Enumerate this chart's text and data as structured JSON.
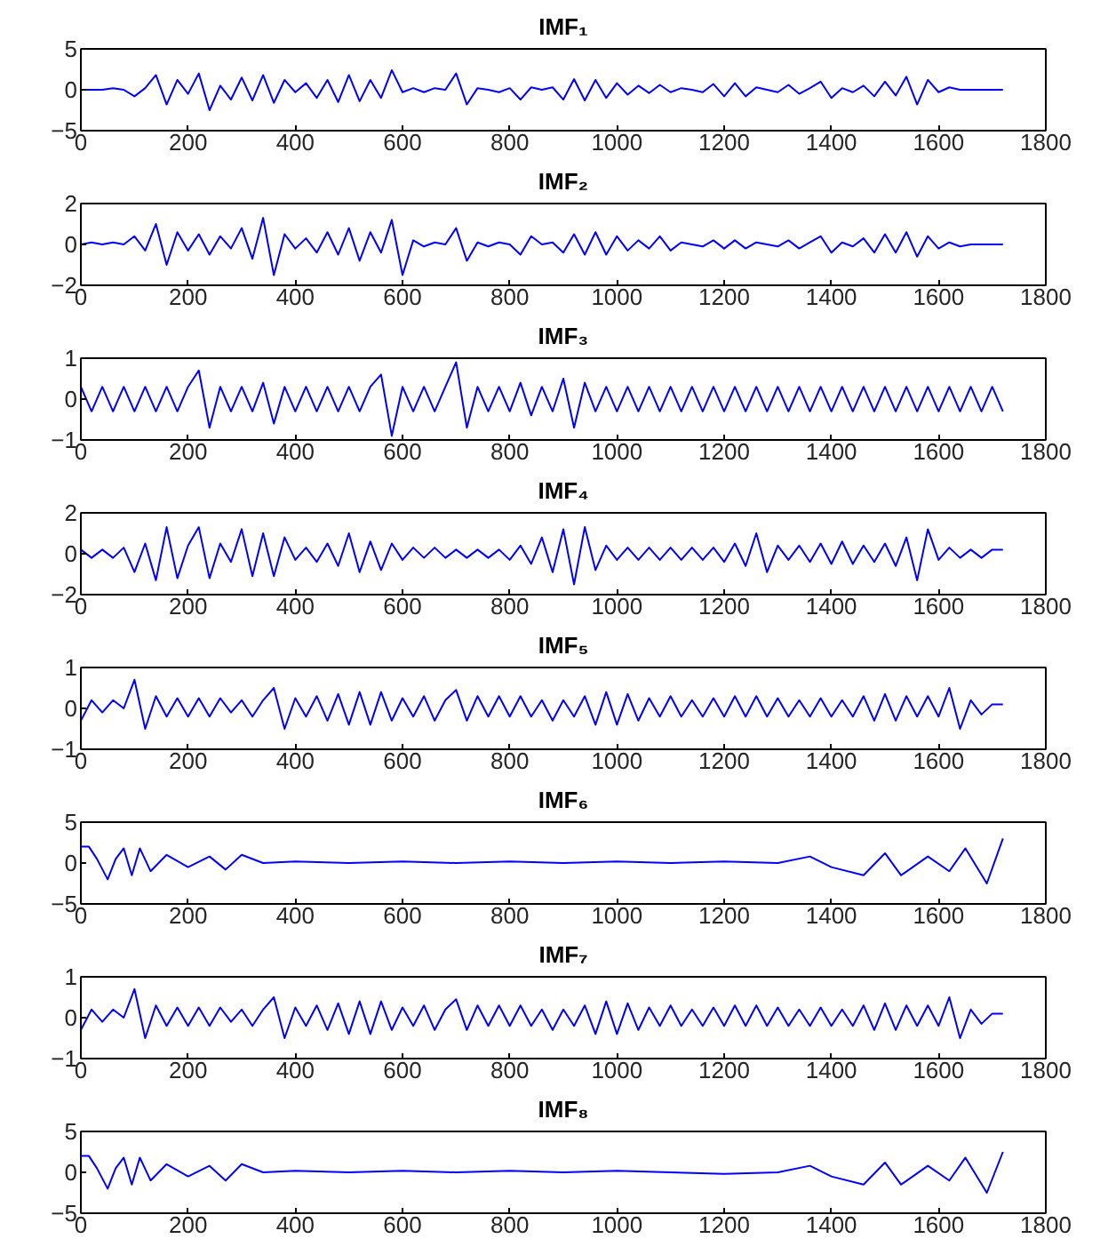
{
  "chart_data": [
    {
      "type": "line",
      "title": "IMF₁",
      "color": "#0000ff",
      "xlim": [
        0,
        1800
      ],
      "xticks": [
        0,
        200,
        400,
        600,
        800,
        1000,
        1200,
        1400,
        1600,
        1800
      ],
      "ylim": [
        -5,
        5
      ],
      "yticks": [
        -5,
        0,
        5
      ],
      "x": [
        0,
        20,
        40,
        60,
        80,
        100,
        120,
        140,
        160,
        180,
        200,
        220,
        240,
        260,
        280,
        300,
        320,
        340,
        360,
        380,
        400,
        420,
        440,
        460,
        480,
        500,
        520,
        540,
        560,
        580,
        600,
        620,
        640,
        660,
        680,
        700,
        720,
        740,
        760,
        780,
        800,
        820,
        840,
        860,
        880,
        900,
        920,
        940,
        960,
        980,
        1000,
        1020,
        1040,
        1060,
        1080,
        1100,
        1120,
        1140,
        1160,
        1180,
        1200,
        1220,
        1240,
        1260,
        1280,
        1300,
        1320,
        1340,
        1360,
        1380,
        1400,
        1420,
        1440,
        1460,
        1480,
        1500,
        1520,
        1540,
        1560,
        1580,
        1600,
        1620,
        1640,
        1660,
        1680,
        1700,
        1720
      ],
      "values": [
        0,
        0,
        0,
        0.2,
        0,
        -0.8,
        0.2,
        1.8,
        -1.8,
        1.2,
        -0.5,
        2,
        -2.5,
        0.5,
        -1.2,
        1.5,
        -1.3,
        1.8,
        -1.6,
        1.2,
        -0.3,
        0.8,
        -1,
        1.2,
        -1.5,
        1.8,
        -1.4,
        1.2,
        -1,
        2.4,
        -0.3,
        0.2,
        -0.3,
        0.2,
        0,
        2,
        -1.8,
        0.2,
        0,
        -0.3,
        0.2,
        -1.2,
        0.3,
        0,
        0.3,
        -1.2,
        1.3,
        -1.3,
        1.2,
        -1,
        0.8,
        -0.6,
        0.5,
        -0.4,
        0.6,
        -0.3,
        0.2,
        0,
        -0.3,
        0.7,
        -0.8,
        0.8,
        -0.8,
        0.3,
        0,
        -0.3,
        0.6,
        -0.5,
        0.2,
        1,
        -1,
        0.2,
        -0.3,
        0.5,
        -0.8,
        1,
        -0.7,
        1.6,
        -1.8,
        1.2,
        -0.3,
        0.3,
        0,
        0,
        0,
        0,
        0
      ]
    },
    {
      "type": "line",
      "title": "IMF₂",
      "color": "#0000ff",
      "xlim": [
        0,
        1800
      ],
      "xticks": [
        0,
        200,
        400,
        600,
        800,
        1000,
        1200,
        1400,
        1600,
        1800
      ],
      "ylim": [
        -2,
        2
      ],
      "yticks": [
        -2,
        0,
        2
      ],
      "x": [
        0,
        20,
        40,
        60,
        80,
        100,
        120,
        140,
        160,
        180,
        200,
        220,
        240,
        260,
        280,
        300,
        320,
        340,
        360,
        380,
        400,
        420,
        440,
        460,
        480,
        500,
        520,
        540,
        560,
        580,
        600,
        620,
        640,
        660,
        680,
        700,
        720,
        740,
        760,
        780,
        800,
        820,
        840,
        860,
        880,
        900,
        920,
        940,
        960,
        980,
        1000,
        1020,
        1040,
        1060,
        1080,
        1100,
        1120,
        1140,
        1160,
        1180,
        1200,
        1220,
        1240,
        1260,
        1280,
        1300,
        1320,
        1340,
        1360,
        1380,
        1400,
        1420,
        1440,
        1460,
        1480,
        1500,
        1520,
        1540,
        1560,
        1580,
        1600,
        1620,
        1640,
        1660,
        1680,
        1700,
        1720
      ],
      "values": [
        0,
        0.1,
        0,
        0.1,
        0,
        0.4,
        -0.3,
        1,
        -1,
        0.6,
        -0.3,
        0.5,
        -0.5,
        0.4,
        -0.2,
        0.8,
        -0.7,
        1.3,
        -1.5,
        0.5,
        -0.2,
        0.3,
        -0.4,
        0.6,
        -0.5,
        0.8,
        -0.8,
        0.6,
        -0.4,
        1.2,
        -1.5,
        0.2,
        -0.1,
        0.1,
        0,
        0.8,
        -0.8,
        0.1,
        -0.1,
        0.1,
        0,
        -0.5,
        0.4,
        0,
        0.1,
        -0.4,
        0.5,
        -0.5,
        0.6,
        -0.5,
        0.4,
        -0.3,
        0.2,
        -0.2,
        0.4,
        -0.3,
        0.1,
        0,
        -0.1,
        0.2,
        -0.2,
        0.2,
        -0.2,
        0.1,
        0,
        -0.1,
        0.2,
        -0.2,
        0.1,
        0.4,
        -0.4,
        0.1,
        -0.1,
        0.3,
        -0.4,
        0.5,
        -0.4,
        0.6,
        -0.6,
        0.4,
        -0.2,
        0.1,
        -0.1,
        0,
        0,
        0,
        0
      ]
    },
    {
      "type": "line",
      "title": "IMF₃",
      "color": "#0000ff",
      "xlim": [
        0,
        1800
      ],
      "xticks": [
        0,
        200,
        400,
        600,
        800,
        1000,
        1200,
        1400,
        1600,
        1800
      ],
      "ylim": [
        -1,
        1
      ],
      "yticks": [
        -1,
        0,
        1
      ],
      "x": [
        0,
        20,
        40,
        60,
        80,
        100,
        120,
        140,
        160,
        180,
        200,
        220,
        240,
        260,
        280,
        300,
        320,
        340,
        360,
        380,
        400,
        420,
        440,
        460,
        480,
        500,
        520,
        540,
        560,
        580,
        600,
        620,
        640,
        660,
        680,
        700,
        720,
        740,
        760,
        780,
        800,
        820,
        840,
        860,
        880,
        900,
        920,
        940,
        960,
        980,
        1000,
        1020,
        1040,
        1060,
        1080,
        1100,
        1120,
        1140,
        1160,
        1180,
        1200,
        1220,
        1240,
        1260,
        1280,
        1300,
        1320,
        1340,
        1360,
        1380,
        1400,
        1420,
        1440,
        1460,
        1480,
        1500,
        1520,
        1540,
        1560,
        1580,
        1600,
        1620,
        1640,
        1660,
        1680,
        1700,
        1720
      ],
      "values": [
        0.3,
        -0.3,
        0.3,
        -0.3,
        0.3,
        -0.3,
        0.3,
        -0.3,
        0.3,
        -0.3,
        0.3,
        0.7,
        -0.7,
        0.3,
        -0.3,
        0.3,
        -0.3,
        0.4,
        -0.6,
        0.3,
        -0.3,
        0.3,
        -0.3,
        0.3,
        -0.3,
        0.3,
        -0.3,
        0.3,
        0.6,
        -0.9,
        0.3,
        -0.3,
        0.3,
        -0.3,
        0.3,
        0.9,
        -0.7,
        0.3,
        -0.3,
        0.3,
        -0.3,
        0.4,
        -0.4,
        0.3,
        -0.3,
        0.5,
        -0.7,
        0.4,
        -0.3,
        0.3,
        -0.3,
        0.3,
        -0.3,
        0.3,
        -0.3,
        0.3,
        -0.3,
        0.3,
        -0.3,
        0.3,
        -0.3,
        0.3,
        -0.3,
        0.3,
        -0.3,
        0.3,
        -0.3,
        0.3,
        -0.3,
        0.3,
        -0.3,
        0.3,
        -0.3,
        0.3,
        -0.3,
        0.3,
        -0.3,
        0.3,
        -0.3,
        0.3,
        -0.3,
        0.3,
        -0.3,
        0.3,
        -0.3,
        0.3,
        -0.3
      ]
    },
    {
      "type": "line",
      "title": "IMF₄",
      "color": "#0000ff",
      "xlim": [
        0,
        1800
      ],
      "xticks": [
        0,
        200,
        400,
        600,
        800,
        1000,
        1200,
        1400,
        1600,
        1800
      ],
      "ylim": [
        -2,
        2
      ],
      "yticks": [
        -2,
        0,
        2
      ],
      "x": [
        0,
        20,
        40,
        60,
        80,
        100,
        120,
        140,
        160,
        180,
        200,
        220,
        240,
        260,
        280,
        300,
        320,
        340,
        360,
        380,
        400,
        420,
        440,
        460,
        480,
        500,
        520,
        540,
        560,
        580,
        600,
        620,
        640,
        660,
        680,
        700,
        720,
        740,
        760,
        780,
        800,
        820,
        840,
        860,
        880,
        900,
        920,
        940,
        960,
        980,
        1000,
        1020,
        1040,
        1060,
        1080,
        1100,
        1120,
        1140,
        1160,
        1180,
        1200,
        1220,
        1240,
        1260,
        1280,
        1300,
        1320,
        1340,
        1360,
        1380,
        1400,
        1420,
        1440,
        1460,
        1480,
        1500,
        1520,
        1540,
        1560,
        1580,
        1600,
        1620,
        1640,
        1660,
        1680,
        1700,
        1720
      ],
      "values": [
        0.2,
        -0.2,
        0.2,
        -0.2,
        0.3,
        -0.9,
        0.5,
        -1.3,
        1.3,
        -1.2,
        0.4,
        1.3,
        -1.2,
        0.5,
        -0.4,
        1.2,
        -1.1,
        1,
        -1.1,
        0.8,
        -0.3,
        0.3,
        -0.4,
        0.5,
        -0.6,
        1,
        -0.9,
        0.6,
        -0.8,
        0.5,
        -0.3,
        0.3,
        -0.2,
        0.3,
        -0.2,
        0.2,
        -0.2,
        0.2,
        -0.2,
        0.2,
        -0.3,
        0.4,
        -0.5,
        0.8,
        -0.9,
        1.2,
        -1.5,
        1.3,
        -0.8,
        0.4,
        -0.3,
        0.3,
        -0.3,
        0.3,
        -0.3,
        0.3,
        -0.3,
        0.3,
        -0.3,
        0.3,
        -0.4,
        0.5,
        -0.6,
        1,
        -0.9,
        0.4,
        -0.3,
        0.4,
        -0.4,
        0.5,
        -0.5,
        0.6,
        -0.5,
        0.4,
        -0.4,
        0.5,
        -0.6,
        0.8,
        -1.3,
        1.2,
        -0.3,
        0.3,
        -0.2,
        0.2,
        -0.2,
        0.2,
        0.2
      ]
    },
    {
      "type": "line",
      "title": "IMF₅",
      "color": "#0000ff",
      "xlim": [
        0,
        1800
      ],
      "xticks": [
        0,
        200,
        400,
        600,
        800,
        1000,
        1200,
        1400,
        1600,
        1800
      ],
      "ylim": [
        -1,
        1
      ],
      "yticks": [
        -1,
        0,
        1
      ],
      "x": [
        0,
        20,
        40,
        60,
        80,
        100,
        120,
        140,
        160,
        180,
        200,
        220,
        240,
        260,
        280,
        300,
        320,
        340,
        360,
        380,
        400,
        420,
        440,
        460,
        480,
        500,
        520,
        540,
        560,
        580,
        600,
        620,
        640,
        660,
        680,
        700,
        720,
        740,
        760,
        780,
        800,
        820,
        840,
        860,
        880,
        900,
        920,
        940,
        960,
        980,
        1000,
        1020,
        1040,
        1060,
        1080,
        1100,
        1120,
        1140,
        1160,
        1180,
        1200,
        1220,
        1240,
        1260,
        1280,
        1300,
        1320,
        1340,
        1360,
        1380,
        1400,
        1420,
        1440,
        1460,
        1480,
        1500,
        1520,
        1540,
        1560,
        1580,
        1600,
        1620,
        1640,
        1660,
        1680,
        1700,
        1720
      ],
      "values": [
        -0.3,
        0.2,
        -0.1,
        0.2,
        0,
        0.7,
        -0.5,
        0.3,
        -0.2,
        0.25,
        -0.2,
        0.25,
        -0.2,
        0.25,
        -0.1,
        0.2,
        -0.2,
        0.2,
        0.5,
        -0.5,
        0.25,
        -0.2,
        0.3,
        -0.3,
        0.35,
        -0.4,
        0.4,
        -0.4,
        0.4,
        -0.3,
        0.25,
        -0.2,
        0.3,
        -0.3,
        0.2,
        0.45,
        -0.3,
        0.3,
        -0.2,
        0.3,
        -0.2,
        0.3,
        -0.2,
        0.2,
        -0.3,
        0.2,
        -0.2,
        0.3,
        -0.4,
        0.4,
        -0.4,
        0.35,
        -0.3,
        0.25,
        -0.2,
        0.3,
        -0.2,
        0.2,
        -0.2,
        0.25,
        -0.2,
        0.3,
        -0.2,
        0.3,
        -0.2,
        0.25,
        -0.2,
        0.2,
        -0.2,
        0.25,
        -0.2,
        0.2,
        -0.2,
        0.3,
        -0.3,
        0.35,
        -0.3,
        0.3,
        -0.2,
        0.3,
        -0.2,
        0.5,
        -0.5,
        0.2,
        -0.15,
        0.1,
        0.1
      ]
    },
    {
      "type": "line",
      "title": "IMF₆",
      "color": "#0000ff",
      "xlim": [
        0,
        1800
      ],
      "xticks": [
        0,
        200,
        400,
        600,
        800,
        1000,
        1200,
        1400,
        1600,
        1800
      ],
      "ylim": [
        -5,
        5
      ],
      "yticks": [
        -5,
        0,
        5
      ],
      "x": [
        0,
        15,
        30,
        50,
        65,
        80,
        95,
        110,
        130,
        160,
        200,
        240,
        270,
        300,
        340,
        400,
        500,
        600,
        700,
        800,
        900,
        1000,
        1100,
        1200,
        1300,
        1360,
        1400,
        1460,
        1500,
        1530,
        1580,
        1620,
        1650,
        1690,
        1720
      ],
      "values": [
        2,
        2,
        0.5,
        -2,
        0.5,
        1.8,
        -1.5,
        1.8,
        -1,
        1,
        -0.5,
        0.8,
        -0.8,
        1,
        0,
        0.2,
        0,
        0.2,
        0,
        0.2,
        0,
        0.2,
        0,
        0.2,
        0,
        0.8,
        -0.5,
        -1.5,
        1.2,
        -1.5,
        0.8,
        -1,
        1.8,
        -2.5,
        3
      ]
    },
    {
      "type": "line",
      "title": "IMF₇",
      "color": "#0000ff",
      "xlim": [
        0,
        1800
      ],
      "xticks": [
        0,
        200,
        400,
        600,
        800,
        1000,
        1200,
        1400,
        1600,
        1800
      ],
      "ylim": [
        -1,
        1
      ],
      "yticks": [
        -1,
        0,
        1
      ],
      "x": [
        0,
        20,
        40,
        60,
        80,
        100,
        120,
        140,
        160,
        180,
        200,
        220,
        240,
        260,
        280,
        300,
        320,
        340,
        360,
        380,
        400,
        420,
        440,
        460,
        480,
        500,
        520,
        540,
        560,
        580,
        600,
        620,
        640,
        660,
        680,
        700,
        720,
        740,
        760,
        780,
        800,
        820,
        840,
        860,
        880,
        900,
        920,
        940,
        960,
        980,
        1000,
        1020,
        1040,
        1060,
        1080,
        1100,
        1120,
        1140,
        1160,
        1180,
        1200,
        1220,
        1240,
        1260,
        1280,
        1300,
        1320,
        1340,
        1360,
        1380,
        1400,
        1420,
        1440,
        1460,
        1480,
        1500,
        1520,
        1540,
        1560,
        1580,
        1600,
        1620,
        1640,
        1660,
        1680,
        1700,
        1720
      ],
      "values": [
        -0.3,
        0.2,
        -0.1,
        0.2,
        0,
        0.7,
        -0.5,
        0.3,
        -0.2,
        0.25,
        -0.2,
        0.25,
        -0.2,
        0.25,
        -0.1,
        0.2,
        -0.2,
        0.2,
        0.5,
        -0.5,
        0.25,
        -0.2,
        0.3,
        -0.3,
        0.35,
        -0.4,
        0.4,
        -0.4,
        0.4,
        -0.3,
        0.25,
        -0.2,
        0.3,
        -0.3,
        0.2,
        0.45,
        -0.3,
        0.3,
        -0.2,
        0.3,
        -0.2,
        0.3,
        -0.2,
        0.2,
        -0.3,
        0.2,
        -0.2,
        0.3,
        -0.4,
        0.4,
        -0.4,
        0.35,
        -0.3,
        0.25,
        -0.2,
        0.3,
        -0.2,
        0.2,
        -0.2,
        0.25,
        -0.2,
        0.3,
        -0.2,
        0.3,
        -0.2,
        0.25,
        -0.2,
        0.2,
        -0.2,
        0.25,
        -0.2,
        0.2,
        -0.2,
        0.3,
        -0.3,
        0.35,
        -0.3,
        0.3,
        -0.2,
        0.3,
        -0.2,
        0.5,
        -0.5,
        0.2,
        -0.15,
        0.1,
        0.1
      ]
    },
    {
      "type": "line",
      "title": "IMF₈",
      "color": "#0000ff",
      "xlim": [
        0,
        1800
      ],
      "xticks": [
        0,
        200,
        400,
        600,
        800,
        1000,
        1200,
        1400,
        1600,
        1800
      ],
      "ylim": [
        -5,
        5
      ],
      "yticks": [
        -5,
        0,
        5
      ],
      "x": [
        0,
        15,
        30,
        50,
        65,
        80,
        95,
        110,
        130,
        160,
        200,
        240,
        270,
        300,
        340,
        400,
        500,
        600,
        700,
        800,
        900,
        1000,
        1100,
        1200,
        1300,
        1360,
        1400,
        1460,
        1500,
        1530,
        1580,
        1620,
        1650,
        1690,
        1720
      ],
      "values": [
        2,
        2,
        0.5,
        -2,
        0.5,
        1.8,
        -1.5,
        1.8,
        -1,
        1,
        -0.5,
        0.8,
        -1,
        1,
        0,
        0.2,
        0,
        0.2,
        0,
        0.2,
        0,
        0.2,
        0,
        -0.2,
        0,
        0.8,
        -0.5,
        -1.5,
        1.2,
        -1.5,
        0.8,
        -1,
        1.8,
        -2.5,
        2.5
      ]
    }
  ]
}
